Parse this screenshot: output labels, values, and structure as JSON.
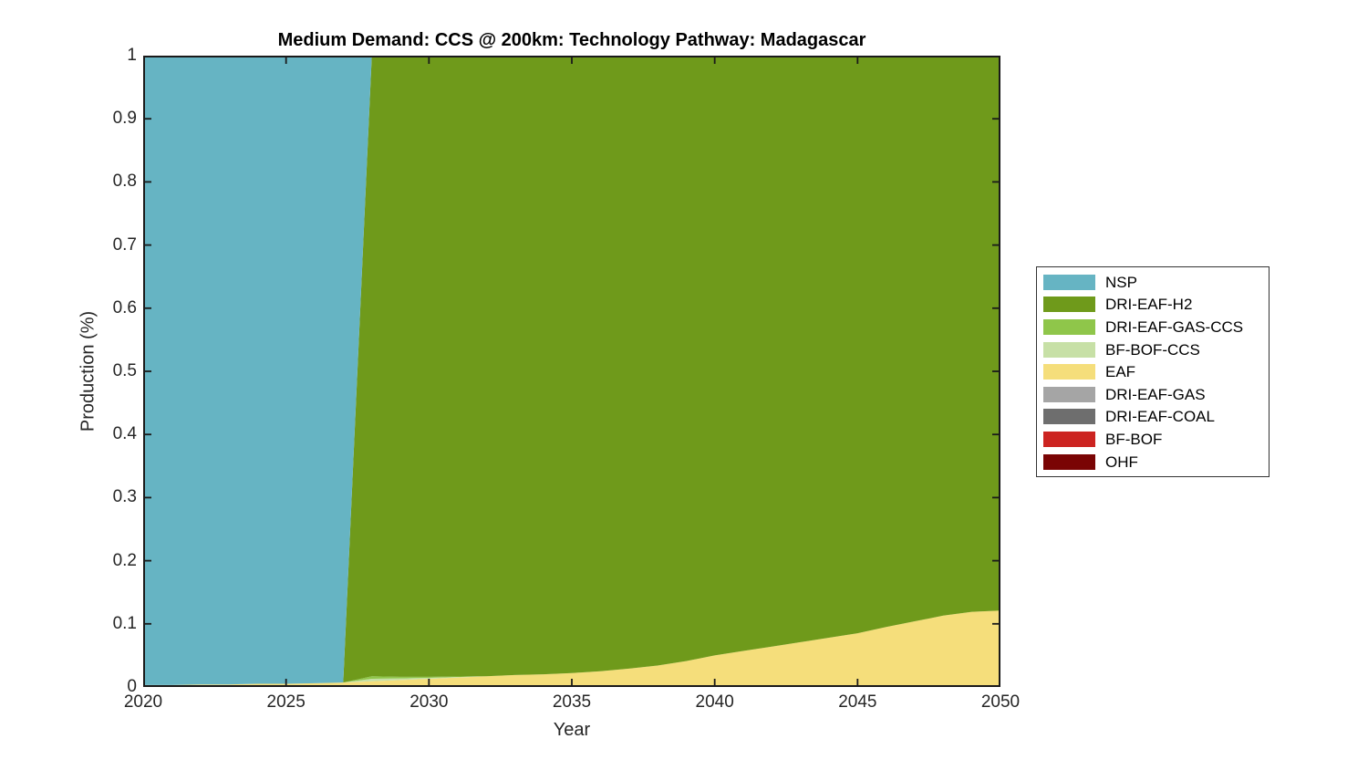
{
  "title": "Medium Demand: CCS @ 200km: Technology Pathway: Madagascar",
  "axes": {
    "xlabel": "Year",
    "ylabel": "Production (%)",
    "x_tick_labels": [
      "2020",
      "2025",
      "2030",
      "2035",
      "2040",
      "2045",
      "2050"
    ],
    "y_tick_labels": [
      "0",
      "0.1",
      "0.2",
      "0.3",
      "0.4",
      "0.5",
      "0.6",
      "0.7",
      "0.8",
      "0.9",
      "1"
    ]
  },
  "colors": {
    "background": "#ffffff",
    "axis_line": "#1a1a1a",
    "tick_text": "#262626",
    "title_text": "#000000",
    "legend_border": "#333333"
  },
  "legend": {
    "position": "right-outside",
    "items": [
      {
        "label": "NSP",
        "color": "#66b4c3"
      },
      {
        "label": "DRI-EAF-H2",
        "color": "#6f9a1b"
      },
      {
        "label": "DRI-EAF-GAS-CCS",
        "color": "#8fc64a"
      },
      {
        "label": "BF-BOF-CCS",
        "color": "#c7e0a6"
      },
      {
        "label": "EAF",
        "color": "#f5de7b"
      },
      {
        "label": "DRI-EAF-GAS",
        "color": "#a5a5a5"
      },
      {
        "label": "DRI-EAF-COAL",
        "color": "#6e6e6e"
      },
      {
        "label": "BF-BOF",
        "color": "#cc2421"
      },
      {
        "label": "OHF",
        "color": "#7a0404"
      }
    ]
  },
  "chart_data": {
    "type": "area",
    "stacked": true,
    "normalized": true,
    "title": "Medium Demand: CCS @ 200km: Technology Pathway: Madagascar",
    "xlabel": "Year",
    "ylabel": "Production (%)",
    "xlim": [
      2020,
      2050
    ],
    "ylim": [
      0,
      1
    ],
    "grid": false,
    "tick_dir": "in",
    "box": true,
    "stack_order": "last-series-at-bottom",
    "x": [
      2020,
      2021,
      2022,
      2023,
      2024,
      2025,
      2026,
      2027,
      2028,
      2029,
      2030,
      2031,
      2032,
      2033,
      2034,
      2035,
      2036,
      2037,
      2038,
      2039,
      2040,
      2041,
      2042,
      2043,
      2044,
      2045,
      2046,
      2047,
      2048,
      2049,
      2050
    ],
    "series": [
      {
        "name": "NSP",
        "color": "#66b4c3",
        "values": [
          0.997,
          0.997,
          0.996,
          0.996,
          0.995,
          0.995,
          0.994,
          0.993,
          0,
          0,
          0,
          0,
          0,
          0,
          0,
          0,
          0,
          0,
          0,
          0,
          0,
          0,
          0,
          0,
          0,
          0,
          0,
          0,
          0,
          0,
          0
        ]
      },
      {
        "name": "DRI-EAF-H2",
        "color": "#6f9a1b",
        "values": [
          0,
          0,
          0,
          0,
          0,
          0,
          0,
          0,
          0.983,
          0.984,
          0.984,
          0.9834,
          0.983,
          0.981,
          0.98,
          0.978,
          0.975,
          0.971,
          0.966,
          0.959,
          0.95,
          0.943,
          0.936,
          0.929,
          0.922,
          0.915,
          0.905,
          0.896,
          0.887,
          0.881,
          0.879
        ]
      },
      {
        "name": "DRI-EAF-GAS-CCS",
        "color": "#8fc64a",
        "values": [
          0,
          0,
          0,
          0,
          0,
          0,
          0,
          0,
          0.004,
          0.0025,
          0.0015,
          0.0008,
          0,
          0,
          0,
          0,
          0,
          0,
          0,
          0,
          0,
          0,
          0,
          0,
          0,
          0,
          0,
          0,
          0,
          0,
          0
        ]
      },
      {
        "name": "BF-BOF-CCS",
        "color": "#c7e0a6",
        "values": [
          0,
          0,
          0,
          0,
          0,
          0,
          0,
          0,
          0.004,
          0.0025,
          0.0015,
          0.0008,
          0,
          0,
          0,
          0,
          0,
          0,
          0,
          0,
          0,
          0,
          0,
          0,
          0,
          0,
          0,
          0,
          0,
          0,
          0
        ]
      },
      {
        "name": "EAF",
        "color": "#f5de7b",
        "values": [
          0.003,
          0.003,
          0.004,
          0.004,
          0.005,
          0.005,
          0.006,
          0.007,
          0.009,
          0.011,
          0.013,
          0.015,
          0.017,
          0.019,
          0.02,
          0.022,
          0.025,
          0.029,
          0.034,
          0.041,
          0.05,
          0.057,
          0.064,
          0.071,
          0.078,
          0.085,
          0.095,
          0.104,
          0.113,
          0.119,
          0.121
        ]
      },
      {
        "name": "DRI-EAF-GAS",
        "color": "#a5a5a5",
        "values": [
          0,
          0,
          0,
          0,
          0,
          0,
          0,
          0,
          0,
          0,
          0,
          0,
          0,
          0,
          0,
          0,
          0,
          0,
          0,
          0,
          0,
          0,
          0,
          0,
          0,
          0,
          0,
          0,
          0,
          0,
          0
        ]
      },
      {
        "name": "DRI-EAF-COAL",
        "color": "#6e6e6e",
        "values": [
          0,
          0,
          0,
          0,
          0,
          0,
          0,
          0,
          0,
          0,
          0,
          0,
          0,
          0,
          0,
          0,
          0,
          0,
          0,
          0,
          0,
          0,
          0,
          0,
          0,
          0,
          0,
          0,
          0,
          0,
          0
        ]
      },
      {
        "name": "BF-BOF",
        "color": "#cc2421",
        "values": [
          0,
          0,
          0,
          0,
          0,
          0,
          0,
          0,
          0,
          0,
          0,
          0,
          0,
          0,
          0,
          0,
          0,
          0,
          0,
          0,
          0,
          0,
          0,
          0,
          0,
          0,
          0,
          0,
          0,
          0,
          0
        ]
      },
      {
        "name": "OHF",
        "color": "#7a0404",
        "values": [
          0,
          0,
          0,
          0,
          0,
          0,
          0,
          0,
          0,
          0,
          0,
          0,
          0,
          0,
          0,
          0,
          0,
          0,
          0,
          0,
          0,
          0,
          0,
          0,
          0,
          0,
          0,
          0,
          0,
          0,
          0
        ]
      }
    ]
  }
}
